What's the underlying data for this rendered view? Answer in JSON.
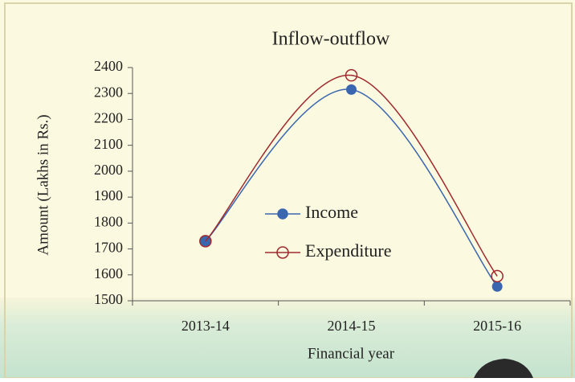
{
  "chart_data": {
    "type": "line",
    "title": "Inflow-outflow",
    "x_label": "Financial year",
    "y_label": "Amount (Lakhs in Rs.)",
    "categories": [
      "2013-14",
      "2014-15",
      "2015-16"
    ],
    "series": [
      {
        "name": "Income",
        "color": "#3a66b0",
        "marker": "filled",
        "values": [
          1730,
          2315,
          1555
        ]
      },
      {
        "name": "Expenditure",
        "color": "#9e2a2f",
        "marker": "open",
        "values": [
          1730,
          2370,
          1595
        ]
      }
    ],
    "ylim": [
      1500,
      2400
    ],
    "yticks": [
      1500,
      1600,
      1700,
      1800,
      1900,
      2000,
      2100,
      2200,
      2300,
      2400
    ],
    "smooth": true
  }
}
